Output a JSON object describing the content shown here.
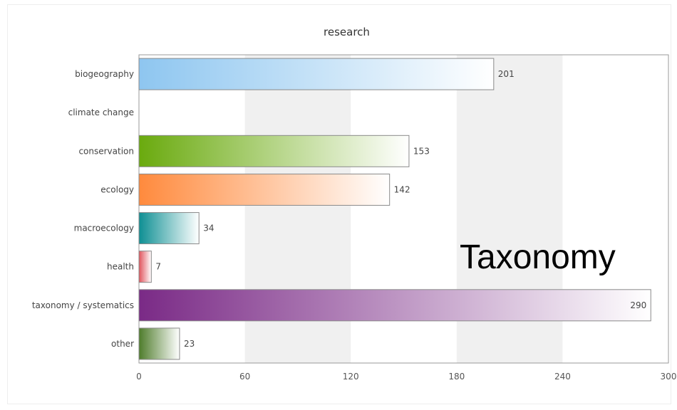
{
  "overlay_text": "Taxonomy",
  "chart_data": {
    "type": "bar",
    "orientation": "horizontal",
    "title": "research",
    "xlabel": "",
    "ylabel": "",
    "xlim": [
      0,
      300
    ],
    "x_ticks": [
      0,
      60,
      120,
      180,
      240,
      300
    ],
    "grid": "alternating vertical bands",
    "categories": [
      "biogeography",
      "climate change",
      "conservation",
      "ecology",
      "macroecology",
      "health",
      "taxonomy / systematics",
      "other"
    ],
    "values": [
      201,
      0,
      153,
      142,
      34,
      7,
      290,
      23
    ],
    "data_labels": [
      "201",
      "",
      "153",
      "142",
      "34",
      "7",
      "290",
      "23"
    ],
    "colors": [
      "#8ec6f0",
      "#cccccc",
      "#6aaa0e",
      "#ff8a3d",
      "#0e8f93",
      "#e0525b",
      "#7a2a86",
      "#4e7c2b"
    ]
  }
}
